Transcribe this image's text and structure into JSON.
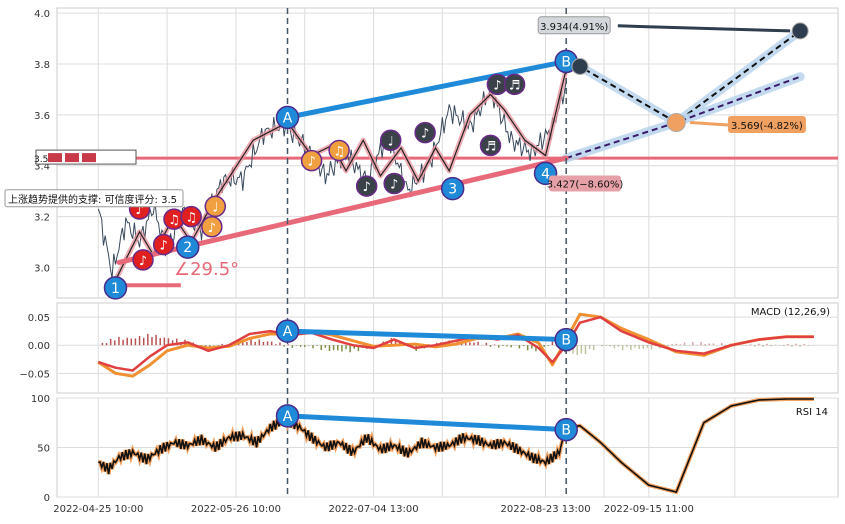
{
  "colors": {
    "grid": "#dcdcdc",
    "frame": "#cccccc",
    "price_line": "#3a4a5c",
    "wave_pink": "#e8909b",
    "support_red": "#e86a7a",
    "trend_blue": "#1f8ad8",
    "note_red": "#e02020",
    "note_orange": "#f0a040",
    "note_dark": "#3a4148",
    "macd_line": "#e04040",
    "signal_line": "#f09030",
    "hist_pos": "#b04040",
    "hist_neg": "#708030",
    "rsi_line": "#111111",
    "rsi_halo": "#f0a060",
    "forecast_blue": "#b8d4ec",
    "annot_orange": "#f0a060",
    "annot_dark": "#2e3e4e"
  },
  "chart_data": [
    {
      "type": "line",
      "panel": "price",
      "ylim": [
        2.88,
        4.02
      ],
      "y_ticks": [
        "3.0",
        "3.2",
        "3.4",
        "3.6",
        "3.8",
        "4.0"
      ],
      "series": [
        {
          "x": [
            0,
            4,
            8,
            12,
            16,
            20,
            24,
            30,
            36,
            42,
            48,
            54,
            60,
            66,
            72,
            78,
            84,
            90,
            96,
            102,
            108,
            114,
            120,
            126,
            132,
            136
          ],
          "values": [
            3.23,
            2.98,
            3.18,
            3.1,
            3.24,
            3.06,
            3.22,
            3.15,
            3.34,
            3.35,
            3.53,
            3.56,
            3.48,
            3.36,
            3.45,
            3.34,
            3.52,
            3.3,
            3.4,
            3.62,
            3.55,
            3.7,
            3.5,
            3.45,
            3.55,
            3.72
          ]
        }
      ],
      "resistance_y": 3.43,
      "wave_labels": [
        "1",
        "2",
        "A",
        "3",
        "4",
        "B"
      ],
      "wave_points": [
        {
          "label": "1",
          "x": 5,
          "y": 2.92
        },
        {
          "label": "2",
          "x": 26,
          "y": 3.08
        },
        {
          "label": "A",
          "x": 55,
          "y": 3.59
        },
        {
          "label": "3",
          "x": 103,
          "y": 3.31
        },
        {
          "label": "4",
          "x": 130,
          "y": 3.37
        },
        {
          "label": "B",
          "x": 136,
          "y": 3.81
        }
      ],
      "trend_lines": [
        {
          "from": {
            "x": 55,
            "y": 3.59
          },
          "to": {
            "x": 136,
            "y": 3.81
          }
        },
        {
          "from": {
            "x": 6,
            "y": 3.02
          },
          "to": {
            "x": 136,
            "y": 3.43
          }
        }
      ],
      "forecast_paths": [
        {
          "points": [
            {
              "x": 136,
              "y": 3.81
            },
            {
              "x": 140,
              "y": 3.79
            },
            {
              "x": 168,
              "y": 3.57
            },
            {
              "x": 204,
              "y": 3.93
            }
          ]
        },
        {
          "points": [
            {
              "x": 136,
              "y": 3.43
            },
            {
              "x": 168,
              "y": 3.57
            },
            {
              "x": 204,
              "y": 3.75
            }
          ]
        }
      ],
      "angle_label": "∠29.5°",
      "support_label": "上涨趋势提供的支撑: 可信度评分: 3.5",
      "callouts": [
        "3.934(4.91%)",
        "3.569(-4.82%)",
        "3.427(−8.60%)"
      ],
      "left_tag": "3.5"
    },
    {
      "type": "line",
      "panel": "macd",
      "title": "MACD (12,26,9)",
      "ylim": [
        -0.085,
        0.075
      ],
      "y_ticks": [
        "0.05",
        "0.00",
        "−0.05"
      ],
      "series": [
        {
          "name": "macd",
          "x": [
            0,
            5,
            10,
            15,
            20,
            26,
            32,
            38,
            44,
            50,
            56,
            62,
            68,
            74,
            80,
            86,
            92,
            98,
            104,
            110,
            116,
            122,
            128,
            132,
            136,
            140,
            146,
            152,
            160,
            168,
            176,
            184,
            192,
            200,
            208
          ],
          "values": [
            -0.03,
            -0.04,
            -0.045,
            -0.02,
            0.0,
            0.005,
            -0.01,
            0.0,
            0.02,
            0.025,
            0.018,
            0.022,
            0.01,
            0.0,
            -0.005,
            0.01,
            -0.005,
            0.0,
            0.008,
            0.016,
            0.01,
            0.018,
            -0.005,
            -0.03,
            0.0,
            0.04,
            0.05,
            0.025,
            0.005,
            -0.01,
            -0.015,
            0.0,
            0.01,
            0.015,
            0.015
          ]
        },
        {
          "name": "signal",
          "x": [
            0,
            5,
            10,
            15,
            20,
            26,
            32,
            38,
            44,
            50,
            56,
            62,
            68,
            74,
            80,
            86,
            92,
            98,
            104,
            110,
            116,
            122,
            128,
            132,
            136,
            140,
            146,
            152,
            160,
            168,
            176,
            184,
            192,
            200,
            208
          ],
          "values": [
            -0.03,
            -0.05,
            -0.055,
            -0.035,
            -0.01,
            0.0,
            -0.005,
            -0.002,
            0.012,
            0.02,
            0.02,
            0.024,
            0.018,
            0.008,
            -0.002,
            0.0,
            0.002,
            -0.003,
            0.002,
            0.012,
            0.012,
            0.02,
            0.004,
            -0.035,
            0.01,
            0.055,
            0.05,
            0.03,
            0.01,
            -0.012,
            -0.018,
            0.0,
            0.01,
            0.015,
            0.015
          ]
        }
      ],
      "divergence": {
        "A": {
          "x": 55,
          "y": 0.025
        },
        "B": {
          "x": 136,
          "y": 0.01
        }
      }
    },
    {
      "type": "line",
      "panel": "rsi",
      "title": "RSI 14",
      "ylim": [
        0,
        100
      ],
      "y_ticks": [
        "100",
        "50",
        "0"
      ],
      "series": [
        {
          "name": "rsi",
          "x": [
            0,
            3,
            6,
            10,
            14,
            18,
            22,
            26,
            30,
            34,
            38,
            42,
            46,
            50,
            54,
            58,
            62,
            66,
            70,
            74,
            78,
            82,
            86,
            90,
            94,
            98,
            102,
            106,
            110,
            114,
            118,
            122,
            126,
            130,
            134,
            136,
            140,
            146,
            152,
            160,
            168,
            172,
            176,
            184,
            192,
            200,
            208
          ],
          "values": [
            35,
            28,
            40,
            45,
            38,
            48,
            55,
            52,
            58,
            50,
            60,
            62,
            55,
            70,
            78,
            72,
            60,
            50,
            55,
            45,
            60,
            48,
            52,
            44,
            55,
            50,
            52,
            60,
            58,
            52,
            55,
            48,
            40,
            35,
            45,
            70,
            72,
            55,
            35,
            12,
            5,
            40,
            75,
            92,
            98,
            99,
            99
          ]
        }
      ],
      "divergence": {
        "A": {
          "x": 55,
          "y": 82
        },
        "B": {
          "x": 136,
          "y": 68
        }
      }
    }
  ],
  "x_axis": {
    "tick_labels": [
      "2022-04-25 10:00",
      "2022-05-26 10:00",
      "2022-07-04 13:00",
      "2022-08-23 13:00",
      "2022-09-15 11:00"
    ],
    "tick_positions": [
      0,
      40,
      80,
      130,
      160
    ],
    "vlines_at": [
      55,
      136
    ],
    "xlim": [
      -12,
      215
    ]
  }
}
